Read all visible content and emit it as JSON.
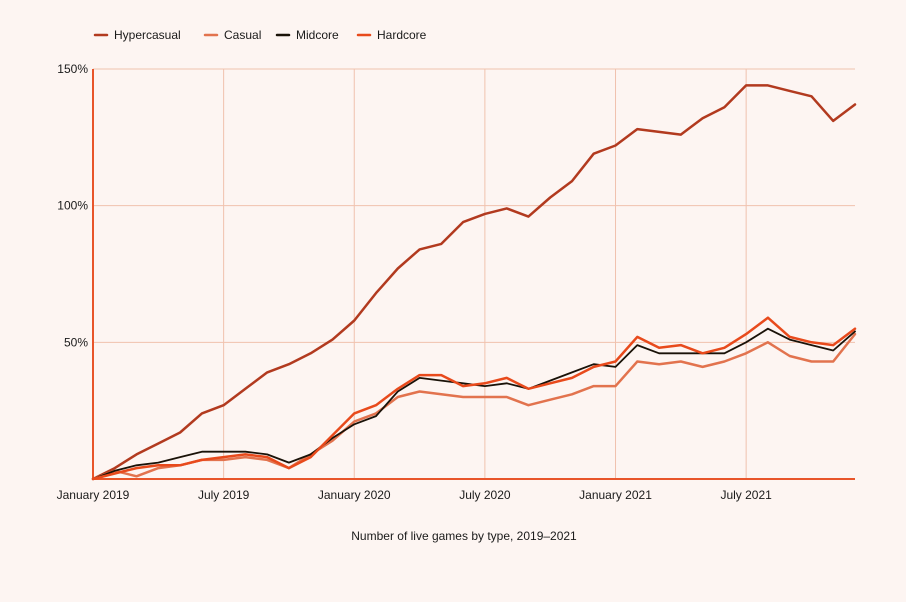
{
  "chart_data": {
    "type": "line",
    "title": "",
    "caption": "Number of live games by type, 2019–2021",
    "xlabel": "",
    "ylabel": "",
    "ylim": [
      0,
      150
    ],
    "y_ticks": [
      50,
      100,
      150
    ],
    "y_tick_labels": [
      "50%",
      "100%",
      "150%"
    ],
    "x_tick_indices": [
      0,
      6,
      12,
      18,
      24,
      30
    ],
    "x_tick_labels": [
      "January 2019",
      "July 2019",
      "January 2020",
      "July 2020",
      "January 2021",
      "July 2021"
    ],
    "x_range": [
      0,
      35
    ],
    "x": [
      "2019-01",
      "2019-02",
      "2019-03",
      "2019-04",
      "2019-05",
      "2019-06",
      "2019-07",
      "2019-08",
      "2019-09",
      "2019-10",
      "2019-11",
      "2019-12",
      "2020-01",
      "2020-02",
      "2020-03",
      "2020-04",
      "2020-05",
      "2020-06",
      "2020-07",
      "2020-08",
      "2020-09",
      "2020-10",
      "2020-11",
      "2020-12",
      "2021-01",
      "2021-02",
      "2021-03",
      "2021-04",
      "2021-05",
      "2021-06",
      "2021-07",
      "2021-08",
      "2021-09",
      "2021-10",
      "2021-11",
      "2021-12"
    ],
    "grid": true,
    "legend_position": "top-left",
    "series": [
      {
        "name": "Hypercasual",
        "color": "#b23a1f",
        "values": [
          0,
          4,
          9,
          13,
          17,
          24,
          27,
          33,
          39,
          42,
          46,
          51,
          58,
          68,
          77,
          84,
          86,
          94,
          97,
          99,
          96,
          103,
          109,
          119,
          122,
          128,
          127,
          126,
          132,
          136,
          144,
          144,
          142,
          140,
          131,
          137
        ]
      },
      {
        "name": "Casual",
        "color": "#e2734e",
        "values": [
          0,
          3,
          1,
          4,
          5,
          7,
          7,
          8,
          7,
          4,
          9,
          14,
          21,
          24,
          30,
          32,
          31,
          30,
          30,
          30,
          27,
          29,
          31,
          34,
          34,
          43,
          42,
          43,
          41,
          43,
          46,
          50,
          45,
          43,
          43,
          53
        ]
      },
      {
        "name": "Midcore",
        "color": "#1a1208",
        "values": [
          0,
          3,
          5,
          6,
          8,
          10,
          10,
          10,
          9,
          6,
          9,
          15,
          20,
          23,
          32,
          37,
          36,
          35,
          34,
          35,
          33,
          36,
          39,
          42,
          41,
          49,
          46,
          46,
          46,
          46,
          50,
          55,
          51,
          49,
          47,
          54
        ]
      },
      {
        "name": "Hardcore",
        "color": "#e84a1c",
        "values": [
          0,
          2,
          4,
          5,
          5,
          7,
          8,
          9,
          8,
          4,
          8,
          16,
          24,
          27,
          33,
          38,
          38,
          34,
          35,
          37,
          33,
          35,
          37,
          41,
          43,
          52,
          48,
          49,
          46,
          48,
          53,
          59,
          52,
          50,
          49,
          55
        ]
      }
    ]
  }
}
